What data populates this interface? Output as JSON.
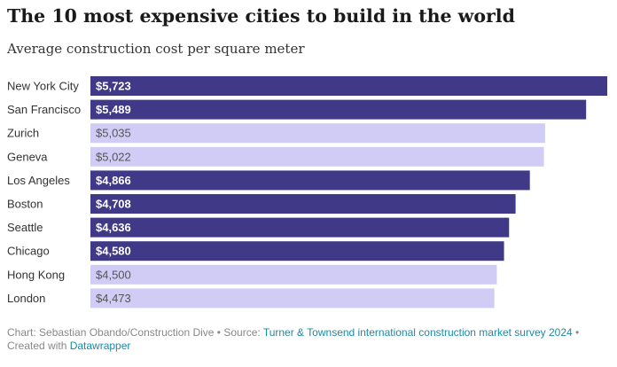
{
  "header": {
    "title": "The 10 most expensive cities to build in the world",
    "subtitle": "Average construction cost per square meter"
  },
  "chart_data": {
    "type": "bar",
    "orientation": "horizontal",
    "title": "The 10 most expensive cities to build in the world",
    "subtitle": "Average construction cost per square meter",
    "categories": [
      "New York City",
      "San Francisco",
      "Zurich",
      "Geneva",
      "Los Angeles",
      "Boston",
      "Seattle",
      "Chicago",
      "Hong Kong",
      "London"
    ],
    "values": [
      5723,
      5489,
      5035,
      5022,
      4866,
      4708,
      4636,
      4580,
      4500,
      4473
    ],
    "value_labels": [
      "$5,723",
      "$5,489",
      "$5,035",
      "$5,022",
      "$4,866",
      "$4,708",
      "$4,636",
      "$4,580",
      "$4,500",
      "$4,473"
    ],
    "highlighted": [
      true,
      true,
      false,
      false,
      true,
      true,
      true,
      true,
      false,
      false
    ],
    "colors": {
      "highlight": "#3f3987",
      "base": "#d1ccf5",
      "label_on_highlight": "#ffffff",
      "label_on_base": "#555555"
    },
    "xlim": [
      0,
      5723
    ],
    "grid": false,
    "legend": "none"
  },
  "footer": {
    "credit": "Chart: Sebastian Obando/Construction Dive",
    "separator": " • ",
    "source_prefix": "Source: ",
    "source_link": "Turner & Townsend international construction market survey 2024",
    "created_prefix": "Created with ",
    "created_link": "Datawrapper"
  }
}
